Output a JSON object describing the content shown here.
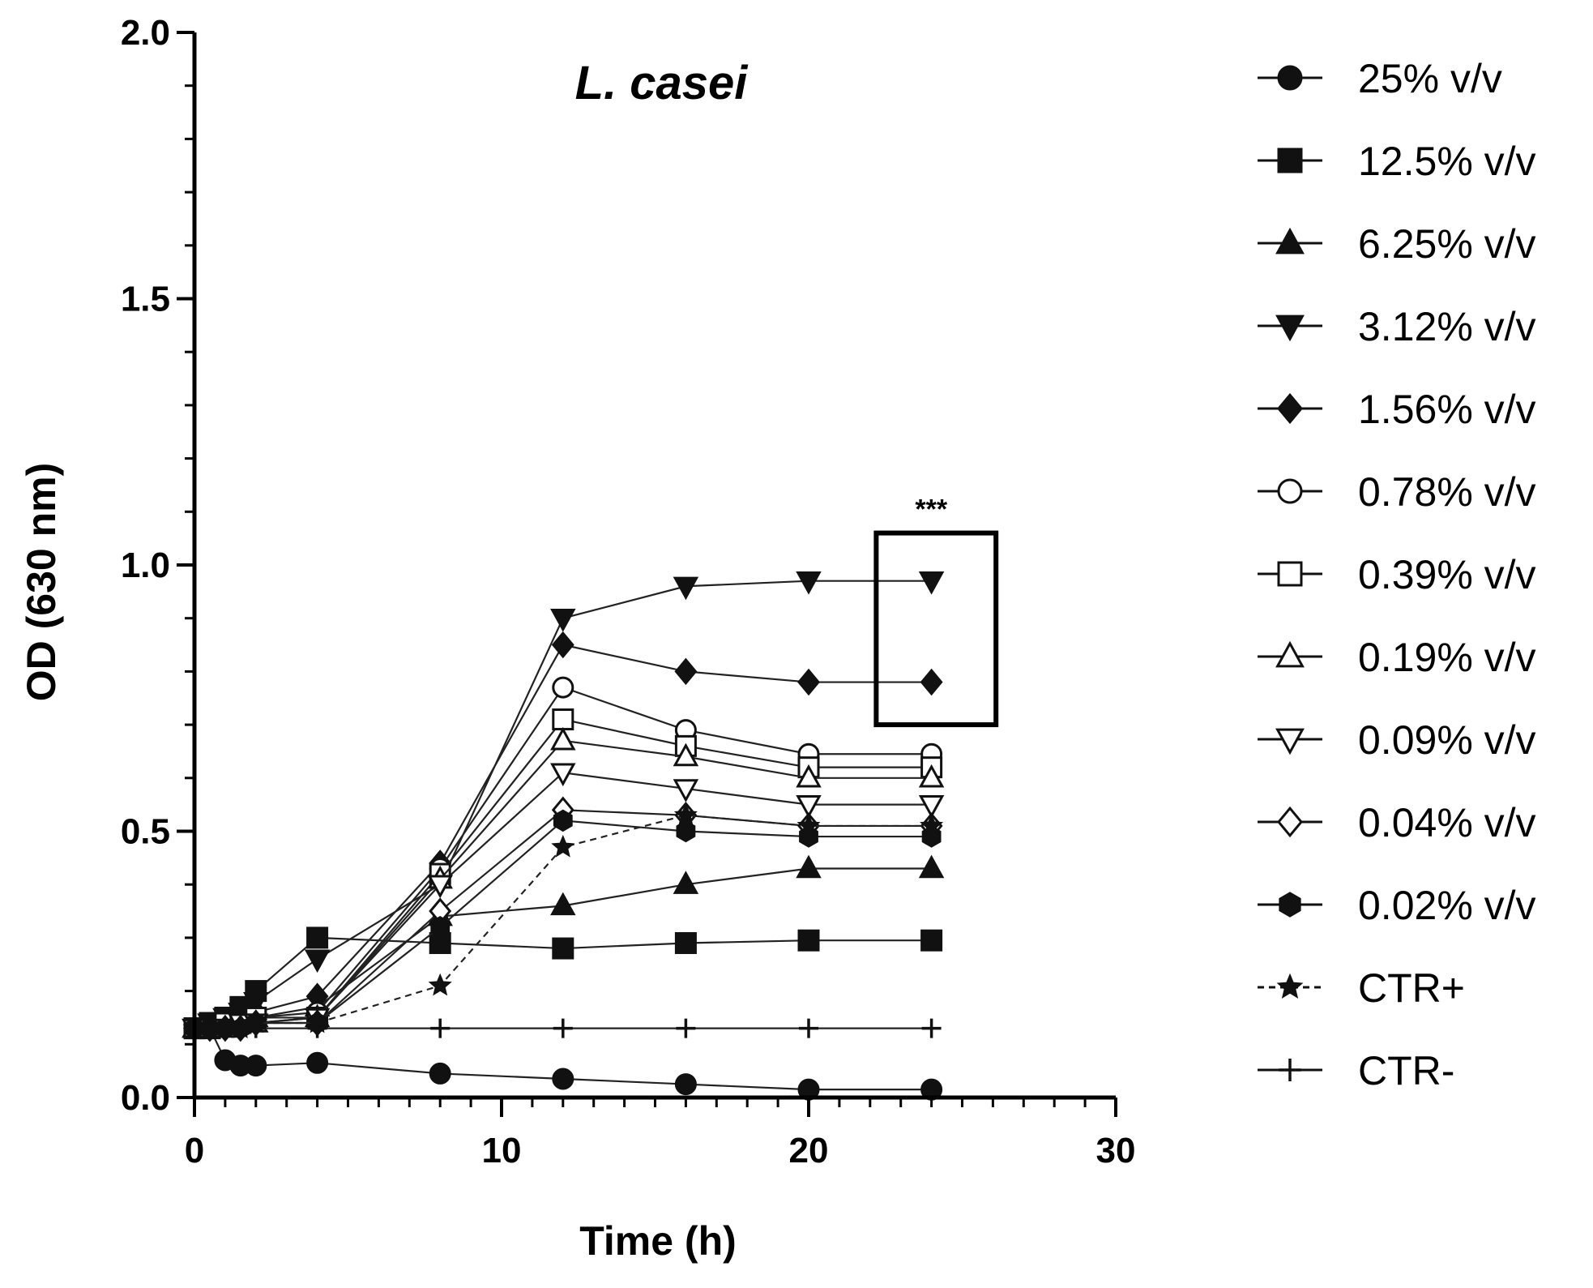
{
  "chart_data": {
    "type": "line",
    "title": "L. casei",
    "xlabel": "Time (h)",
    "ylabel": "OD (630 nm)",
    "xlim": [
      0,
      30
    ],
    "ylim": [
      0,
      2.0
    ],
    "x_ticks": [
      "0",
      "10",
      "20",
      "30"
    ],
    "y_ticks": [
      "0.0",
      "0.5",
      "1.0",
      "1.5",
      "2.0"
    ],
    "annotation": "***",
    "highlight_box": {
      "x_range": [
        22.2,
        26.1
      ],
      "y_range": [
        0.7,
        1.06
      ]
    },
    "legend_position": "right",
    "x": [
      0,
      0.5,
      1,
      1.5,
      2,
      4,
      8,
      12,
      16,
      20,
      24
    ],
    "series": [
      {
        "name": "25% v/v",
        "marker": "circle-filled",
        "dashed": false,
        "values": [
          0.13,
          0.13,
          0.07,
          0.06,
          0.06,
          0.065,
          0.045,
          0.035,
          0.025,
          0.015,
          0.015
        ]
      },
      {
        "name": "12.5% v/v",
        "marker": "square-filled",
        "dashed": false,
        "values": [
          0.13,
          0.14,
          0.15,
          0.17,
          0.2,
          0.3,
          0.29,
          0.28,
          0.29,
          0.295,
          0.295
        ]
      },
      {
        "name": "6.25% v/v",
        "marker": "triangle-up-filled",
        "dashed": false,
        "values": [
          0.13,
          0.13,
          0.14,
          0.14,
          0.15,
          0.17,
          0.34,
          0.36,
          0.4,
          0.43,
          0.43
        ]
      },
      {
        "name": "3.12% v/v",
        "marker": "triangle-down-filled",
        "dashed": false,
        "values": [
          0.13,
          0.14,
          0.15,
          0.16,
          0.18,
          0.26,
          0.4,
          0.9,
          0.96,
          0.97,
          0.97
        ]
      },
      {
        "name": "1.56% v/v",
        "marker": "diamond-filled",
        "dashed": false,
        "values": [
          0.13,
          0.13,
          0.14,
          0.15,
          0.16,
          0.19,
          0.44,
          0.85,
          0.8,
          0.78,
          0.78
        ]
      },
      {
        "name": "0.78% v/v",
        "marker": "circle-open",
        "dashed": false,
        "values": [
          0.13,
          0.13,
          0.14,
          0.14,
          0.15,
          0.16,
          0.43,
          0.77,
          0.69,
          0.645,
          0.645
        ]
      },
      {
        "name": "0.39% v/v",
        "marker": "square-open",
        "dashed": false,
        "values": [
          0.13,
          0.13,
          0.14,
          0.14,
          0.15,
          0.15,
          0.42,
          0.71,
          0.66,
          0.62,
          0.62
        ]
      },
      {
        "name": "0.19% v/v",
        "marker": "triangle-up-open",
        "dashed": false,
        "values": [
          0.13,
          0.13,
          0.13,
          0.14,
          0.14,
          0.15,
          0.41,
          0.67,
          0.64,
          0.6,
          0.6
        ]
      },
      {
        "name": "0.09% v/v",
        "marker": "triangle-down-open",
        "dashed": false,
        "values": [
          0.13,
          0.13,
          0.13,
          0.14,
          0.14,
          0.15,
          0.4,
          0.61,
          0.58,
          0.55,
          0.55
        ]
      },
      {
        "name": "0.04% v/v",
        "marker": "diamond-open",
        "dashed": false,
        "values": [
          0.13,
          0.13,
          0.13,
          0.13,
          0.14,
          0.14,
          0.35,
          0.54,
          0.53,
          0.51,
          0.51
        ]
      },
      {
        "name": "0.02% v/v",
        "marker": "hexagon-filled",
        "dashed": false,
        "values": [
          0.13,
          0.13,
          0.13,
          0.13,
          0.14,
          0.14,
          0.32,
          0.52,
          0.5,
          0.49,
          0.49
        ]
      },
      {
        "name": "CTR+",
        "marker": "star",
        "dashed": true,
        "values": [
          0.13,
          0.13,
          0.13,
          0.13,
          0.14,
          0.14,
          0.21,
          0.47,
          0.53,
          0.51,
          0.51
        ]
      },
      {
        "name": "CTR-",
        "marker": "plus",
        "dashed": false,
        "values": [
          0.13,
          0.13,
          0.13,
          0.13,
          0.13,
          0.13,
          0.13,
          0.13,
          0.13,
          0.13,
          0.13
        ]
      }
    ]
  }
}
